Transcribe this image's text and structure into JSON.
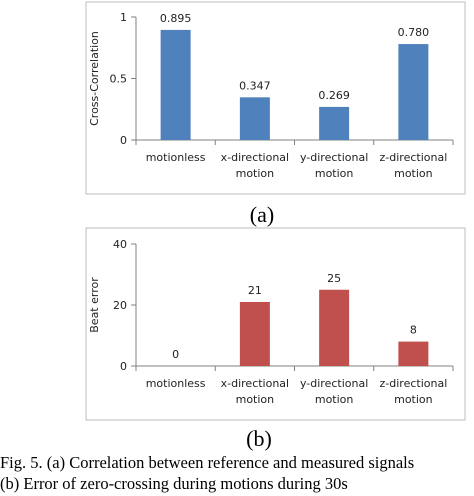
{
  "chart_data": [
    {
      "type": "bar",
      "panel_label": "(a)",
      "title": "",
      "xlabel": "",
      "ylabel": "Cross-Correlation",
      "ylim": [
        0,
        1
      ],
      "yticks": [
        "0",
        "0.5",
        "1"
      ],
      "categories": [
        [
          "motionless"
        ],
        [
          "x-directional",
          "motion"
        ],
        [
          "y-directional",
          "motion"
        ],
        [
          "z-directional",
          "motion"
        ]
      ],
      "values": [
        0.895,
        0.347,
        0.269,
        0.78
      ],
      "data_labels": [
        "0.895",
        "0.347",
        "0.269",
        "0.780"
      ],
      "color": "#4f81bd",
      "grid": false,
      "legend": "none"
    },
    {
      "type": "bar",
      "panel_label": "(b)",
      "title": "",
      "xlabel": "",
      "ylabel": "Beat error",
      "ylim": [
        0,
        40
      ],
      "yticks": [
        "0",
        "20",
        "40"
      ],
      "categories": [
        [
          "motionless"
        ],
        [
          "x-directional",
          "motion"
        ],
        [
          "y-directional",
          "motion"
        ],
        [
          "z-directional",
          "motion"
        ]
      ],
      "values": [
        0,
        21,
        25,
        8
      ],
      "data_labels": [
        "0",
        "21",
        "25",
        "8"
      ],
      "color": "#c0504d",
      "grid": false,
      "legend": "none"
    }
  ],
  "caption": {
    "line1": "Fig. 5. (a) Correlation between reference and measured signals",
    "line2": "(b) Error of zero-crossing during motions during 30s"
  }
}
